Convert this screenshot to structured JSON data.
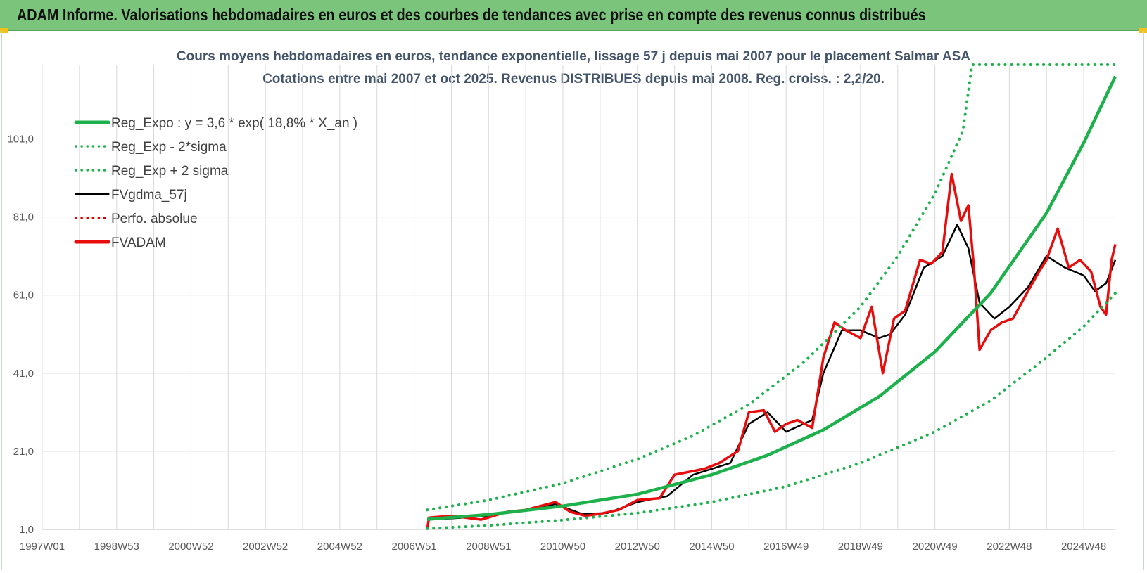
{
  "header": {
    "title": "ADAM Informe. Valorisations hebdomadaires en euros et des courbes de tendances avec prise en compte des revenus connus distribués"
  },
  "colors": {
    "header_bg": "#7ac57b",
    "reg_expo": "#1db14b",
    "bands": "#1db14b",
    "fvgdma": "#000000",
    "perfo": "#e00000",
    "fvadam": "#e80c0c",
    "grid": "#d9d9d9"
  },
  "chart_data": {
    "type": "line",
    "title": "Cours moyens hebdomadaires en euros, tendance exponentielle, lissage 57 j depuis mai 2007 pour le placement Salmar ASA",
    "subtitle": "Cotations entre mai 2007 et oct 2025.  Revenus DISTRIBUES depuis mai 2008. Reg. croiss. : 2,2/20.",
    "xlabel": "",
    "ylabel": "",
    "x_ticks": [
      "1997W01",
      "1998W53",
      "2000W52",
      "2002W52",
      "2004W52",
      "2006W51",
      "2008W51",
      "2010W50",
      "2012W50",
      "2014W50",
      "2016W49",
      "2018W49",
      "2020W49",
      "2022W48",
      "2024W48"
    ],
    "x_range": [
      1997.0,
      2025.85
    ],
    "y_ticks": [
      "1,0",
      "21,0",
      "41,0",
      "61,0",
      "81,0",
      "101,0"
    ],
    "ylim": [
      1,
      120
    ],
    "grid": true,
    "legend_position": "top-left",
    "legend": [
      {
        "name": "Reg_Expo : y = 3,6 * exp( 18,8% *  X_an )",
        "style": "solid-thick",
        "color": "#1db14b"
      },
      {
        "name": "Reg_Exp - 2*sigma",
        "style": "dotted",
        "color": "#1db14b"
      },
      {
        "name": "Reg_Exp + 2 sigma",
        "style": "dotted",
        "color": "#1db14b"
      },
      {
        "name": "FVgdma_57j",
        "style": "solid",
        "color": "#000000"
      },
      {
        "name": "Perfo. absolue",
        "style": "dotted",
        "color": "#e00000"
      },
      {
        "name": "FVADAM",
        "style": "solid-thick",
        "color": "#e80c0c"
      }
    ],
    "series": [
      {
        "name": "Reg_Expo : y = 3,6 * exp( 18,8% *  X_an )",
        "x": [
          2007.35,
          2009.0,
          2011.0,
          2013.0,
          2015.0,
          2016.5,
          2018.0,
          2019.5,
          2021.0,
          2022.5,
          2024.0,
          2025.0,
          2025.85
        ],
        "y": [
          3.6,
          4.8,
          7.0,
          10.0,
          15.0,
          20.0,
          26.5,
          35.0,
          46.5,
          61.5,
          82.0,
          100.0,
          117.0
        ]
      },
      {
        "name": "Reg_Exp - 2*sigma",
        "x": [
          2007.35,
          2009.0,
          2011.0,
          2013.0,
          2015.0,
          2017.0,
          2019.0,
          2021.0,
          2022.5,
          2024.0,
          2025.0,
          2025.85
        ],
        "y": [
          1.2,
          2.0,
          3.4,
          5.2,
          8.0,
          12.0,
          18.0,
          26.0,
          34.0,
          45.0,
          53.0,
          61.5
        ]
      },
      {
        "name": "Reg_Exp + 2 sigma",
        "x": [
          2007.35,
          2009.0,
          2011.0,
          2013.0,
          2014.5,
          2016.0,
          2017.5,
          2019.0,
          2020.0,
          2021.0,
          2021.75,
          2022.0,
          2025.85
        ],
        "y": [
          6.0,
          8.5,
          12.8,
          19.0,
          25.0,
          33.0,
          44.0,
          58.0,
          71.0,
          87.0,
          103.0,
          120.0,
          120.0
        ]
      },
      {
        "name": "FVgdma_57j",
        "x": [
          2007.35,
          2008.0,
          2009.0,
          2010.0,
          2010.8,
          2011.5,
          2012.2,
          2013.0,
          2013.8,
          2014.5,
          2015.5,
          2016.0,
          2016.5,
          2017.0,
          2017.7,
          2018.0,
          2018.5,
          2019.0,
          2019.5,
          2019.8,
          2020.2,
          2020.7,
          2021.2,
          2021.6,
          2021.9,
          2022.2,
          2022.6,
          2023.0,
          2023.5,
          2024.0,
          2024.5,
          2025.0,
          2025.3,
          2025.6,
          2025.85
        ],
        "y": [
          3.5,
          3.8,
          4.5,
          6.0,
          7.5,
          5.0,
          5.2,
          8.0,
          9.5,
          15.0,
          18.0,
          28.0,
          31.0,
          26.0,
          29.0,
          41.0,
          52.0,
          52.0,
          50.0,
          51.0,
          56.0,
          68.0,
          71.0,
          79.0,
          73.0,
          59.0,
          55.0,
          58.0,
          63.0,
          71.0,
          68.0,
          66.0,
          62.0,
          64.0,
          70.0
        ]
      },
      {
        "name": "FVADAM",
        "x": [
          2007.35,
          2007.4,
          2008.0,
          2008.8,
          2009.5,
          2010.0,
          2010.8,
          2011.2,
          2011.6,
          2012.0,
          2012.5,
          2013.0,
          2013.6,
          2014.0,
          2014.8,
          2015.2,
          2015.7,
          2016.0,
          2016.4,
          2016.7,
          2017.0,
          2017.3,
          2017.7,
          2018.0,
          2018.3,
          2018.6,
          2019.0,
          2019.3,
          2019.6,
          2019.9,
          2020.2,
          2020.6,
          2020.9,
          2021.2,
          2021.45,
          2021.7,
          2021.9,
          2022.05,
          2022.2,
          2022.5,
          2022.8,
          2023.1,
          2023.5,
          2023.8,
          2024.0,
          2024.3,
          2024.6,
          2024.9,
          2025.2,
          2025.45,
          2025.6,
          2025.75,
          2025.85
        ],
        "y": [
          1.0,
          4.0,
          4.5,
          3.5,
          5.5,
          6.0,
          8.0,
          5.5,
          4.5,
          5.0,
          6.0,
          8.5,
          9.0,
          15.0,
          16.5,
          18.0,
          21.0,
          31.0,
          31.5,
          26.0,
          28.0,
          29.0,
          27.0,
          45.0,
          54.0,
          52.0,
          50.0,
          58.0,
          41.0,
          55.0,
          57.0,
          70.0,
          69.0,
          72.0,
          92.0,
          80.0,
          84.0,
          68.0,
          47.0,
          52.0,
          54.0,
          55.0,
          62.0,
          67.0,
          70.0,
          78.0,
          68.0,
          70.0,
          67.0,
          58.0,
          56.0,
          70.0,
          74.0
        ]
      }
    ]
  }
}
